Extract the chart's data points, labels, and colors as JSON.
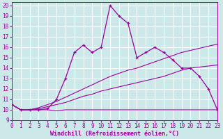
{
  "bg_color": "#cce8e8",
  "grid_color": "#ffffff",
  "line_color": "#990099",
  "xlabel": "Windchill (Refroidissement éolien,°C)",
  "xlim": [
    0,
    23
  ],
  "ylim": [
    9,
    20.3
  ],
  "xticks": [
    0,
    1,
    2,
    3,
    4,
    5,
    6,
    7,
    8,
    9,
    10,
    11,
    12,
    13,
    14,
    15,
    16,
    17,
    18,
    19,
    20,
    21,
    22,
    23
  ],
  "yticks": [
    9,
    10,
    11,
    12,
    13,
    14,
    15,
    16,
    17,
    18,
    19,
    20
  ],
  "flat_x": [
    0,
    1,
    2,
    3,
    4,
    5,
    6,
    7,
    8,
    9,
    10,
    11,
    12,
    13,
    14,
    15,
    16,
    17,
    18,
    19,
    20,
    21,
    22,
    23
  ],
  "flat_y": [
    10.5,
    10.0,
    10.0,
    10.0,
    10.0,
    9.9,
    10.0,
    10.0,
    10.0,
    10.0,
    10.0,
    10.0,
    10.0,
    10.0,
    10.0,
    10.0,
    10.0,
    10.0,
    10.0,
    10.0,
    10.0,
    10.0,
    10.0,
    10.0
  ],
  "diag1_x": [
    0,
    1,
    2,
    3,
    4,
    5,
    6,
    7,
    8,
    9,
    10,
    11,
    12,
    13,
    14,
    15,
    16,
    17,
    18,
    19,
    20,
    21,
    22,
    23
  ],
  "diag1_y": [
    10.5,
    10.0,
    10.0,
    10.1,
    10.3,
    10.5,
    10.7,
    11.0,
    11.3,
    11.5,
    11.8,
    12.0,
    12.2,
    12.4,
    12.6,
    12.8,
    13.0,
    13.2,
    13.5,
    13.8,
    14.0,
    14.1,
    14.2,
    14.3
  ],
  "diag2_x": [
    0,
    1,
    2,
    3,
    4,
    5,
    6,
    7,
    8,
    9,
    10,
    11,
    12,
    13,
    14,
    15,
    16,
    17,
    18,
    19,
    20,
    21,
    22,
    23
  ],
  "diag2_y": [
    10.5,
    10.0,
    10.0,
    10.2,
    10.5,
    10.8,
    11.2,
    11.6,
    12.0,
    12.4,
    12.8,
    13.2,
    13.5,
    13.8,
    14.0,
    14.3,
    14.6,
    14.9,
    15.2,
    15.5,
    15.7,
    15.9,
    16.1,
    16.3
  ],
  "main_x": [
    0,
    1,
    2,
    3,
    4,
    5,
    6,
    7,
    8,
    9,
    10,
    11,
    12,
    13,
    14,
    15,
    16,
    17,
    18,
    19,
    20,
    21,
    22,
    23
  ],
  "main_y": [
    10.5,
    10.0,
    10.0,
    10.0,
    10.1,
    11.0,
    13.0,
    15.5,
    16.2,
    15.5,
    16.0,
    20.0,
    19.0,
    18.3,
    15.0,
    15.5,
    16.0,
    15.5,
    14.8,
    14.0,
    14.0,
    13.2,
    12.0,
    10.0
  ]
}
